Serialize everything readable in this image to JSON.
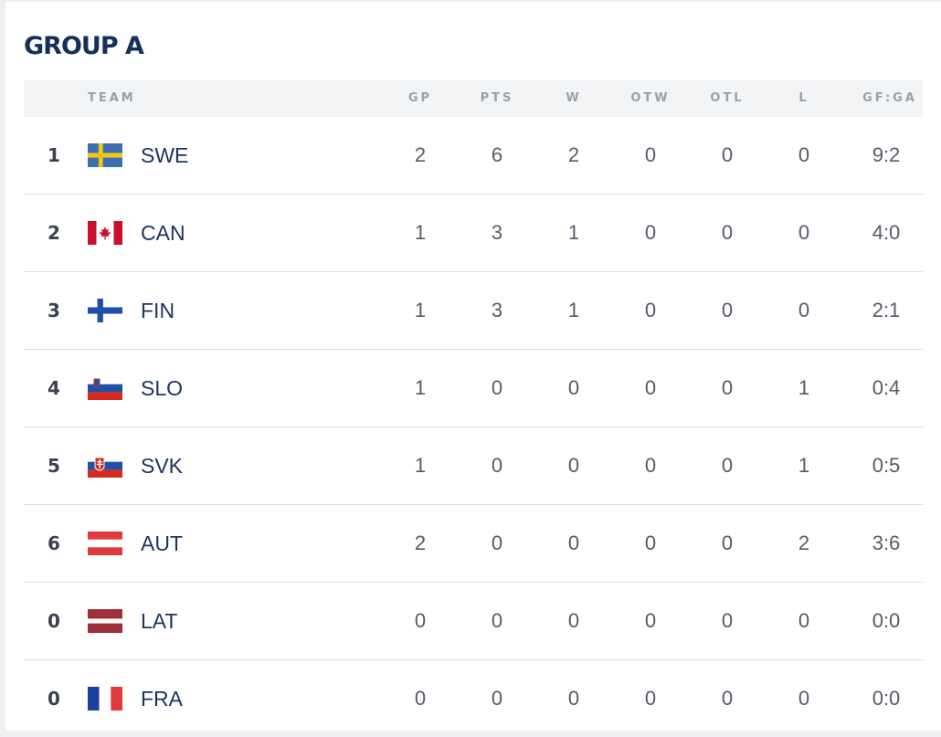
{
  "group": {
    "title": "GROUP A"
  },
  "columns": {
    "team": "TEAM",
    "gp": "GP",
    "pts": "PTS",
    "w": "W",
    "otw": "OTW",
    "otl": "OTL",
    "l": "L",
    "gfga": "GF:GA"
  },
  "rows": [
    {
      "rank": "1",
      "team": "SWE",
      "flag": "sweden-flag-icon",
      "gp": "2",
      "pts": "6",
      "w": "2",
      "otw": "0",
      "otl": "0",
      "l": "0",
      "gfga": "9:2"
    },
    {
      "rank": "2",
      "team": "CAN",
      "flag": "canada-flag-icon",
      "gp": "1",
      "pts": "3",
      "w": "1",
      "otw": "0",
      "otl": "0",
      "l": "0",
      "gfga": "4:0"
    },
    {
      "rank": "3",
      "team": "FIN",
      "flag": "finland-flag-icon",
      "gp": "1",
      "pts": "3",
      "w": "1",
      "otw": "0",
      "otl": "0",
      "l": "0",
      "gfga": "2:1"
    },
    {
      "rank": "4",
      "team": "SLO",
      "flag": "slovenia-flag-icon",
      "gp": "1",
      "pts": "0",
      "w": "0",
      "otw": "0",
      "otl": "0",
      "l": "1",
      "gfga": "0:4"
    },
    {
      "rank": "5",
      "team": "SVK",
      "flag": "slovakia-flag-icon",
      "gp": "1",
      "pts": "0",
      "w": "0",
      "otw": "0",
      "otl": "0",
      "l": "1",
      "gfga": "0:5"
    },
    {
      "rank": "6",
      "team": "AUT",
      "flag": "austria-flag-icon",
      "gp": "2",
      "pts": "0",
      "w": "0",
      "otw": "0",
      "otl": "0",
      "l": "2",
      "gfga": "3:6"
    },
    {
      "rank": "0",
      "team": "LAT",
      "flag": "latvia-flag-icon",
      "gp": "0",
      "pts": "0",
      "w": "0",
      "otw": "0",
      "otl": "0",
      "l": "0",
      "gfga": "0:0"
    },
    {
      "rank": "0",
      "team": "FRA",
      "flag": "france-flag-icon",
      "gp": "0",
      "pts": "0",
      "w": "0",
      "otw": "0",
      "otl": "0",
      "l": "0",
      "gfga": "0:0"
    }
  ],
  "colors": {
    "title": "#16305c",
    "team_text": "#1e3460",
    "header_bg": "#f3f4f6",
    "row_divider": "#dcdfe3"
  }
}
